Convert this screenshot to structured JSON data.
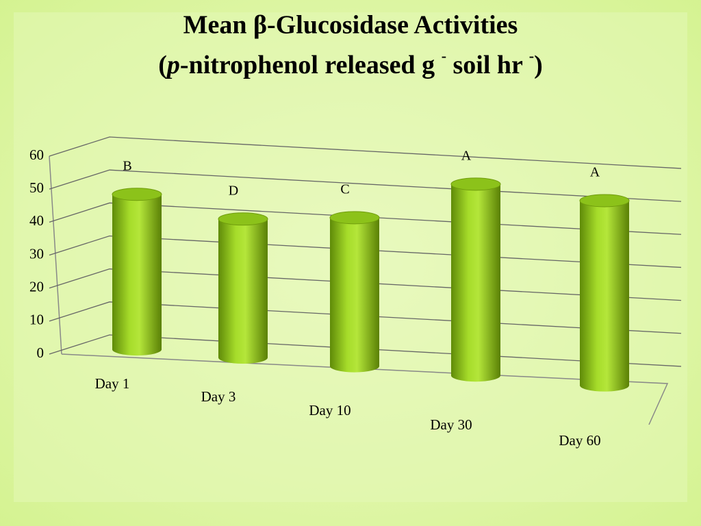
{
  "chart_data": {
    "type": "bar",
    "title": "Mean β-Glucosidase Activities",
    "subtitle": [
      "(",
      "p",
      "-nitrophenol released g ",
      "-",
      " soil hr ",
      "-",
      ")"
    ],
    "categories": [
      "Day 1",
      "Day 3",
      "Day 10",
      "Day 30",
      "Day 60"
    ],
    "values": [
      47,
      42,
      45,
      58,
      56
    ],
    "annotations": [
      "B",
      "D",
      "C",
      "A",
      "A"
    ],
    "color": "#8cc21a",
    "ylim": [
      0,
      60
    ],
    "yticks": [
      0,
      10,
      20,
      30,
      40,
      50,
      60
    ],
    "grid": true
  }
}
